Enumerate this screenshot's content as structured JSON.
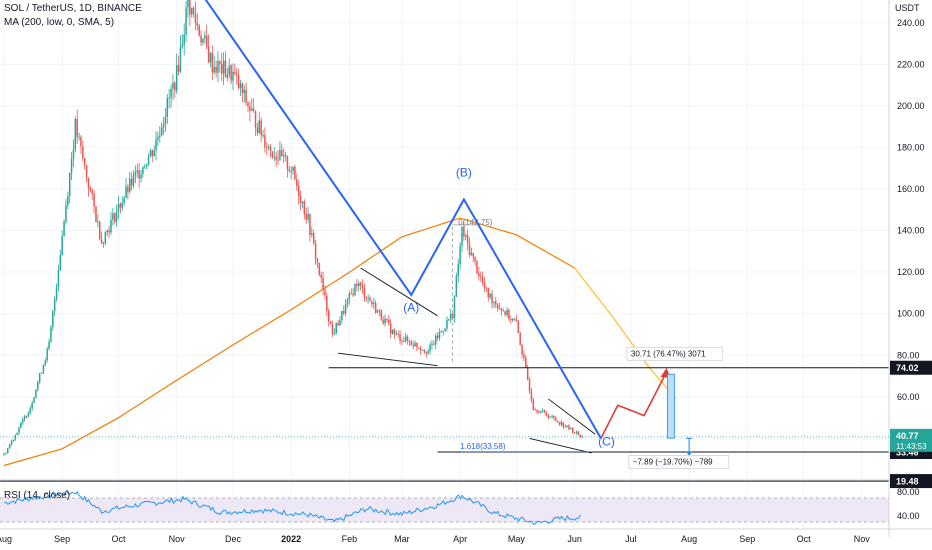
{
  "header": {
    "symbol_line": "SOL / TetherUS, 1D, BINANCE",
    "ma_line": "MA (200, low, 0, SMA, 5)",
    "rsi_line": "RSI (14, close)",
    "currency": "USDT"
  },
  "colors": {
    "up": "#26a69a",
    "down": "#ef5350",
    "ma": "#f57c00",
    "wave": "#2962ff",
    "projection": "#e53935",
    "rsi": "#2196f3",
    "rsi_band": "#ede7f6",
    "price_badge": "#26a69a"
  },
  "chart_data": [
    {
      "type": "candlestick",
      "title": "SOL / TetherUS, 1D, BINANCE",
      "x_ticks": [
        "Aug",
        "Sep",
        "Oct",
        "Nov",
        "Dec",
        "2022",
        "Feb",
        "Mar",
        "Apr",
        "May",
        "Jun",
        "Jul",
        "Aug",
        "Sep",
        "Oct",
        "Nov"
      ],
      "y_ticks": [
        "240.00",
        "220.00",
        "200.00",
        "180.00",
        "160.00",
        "140.00",
        "120.00",
        "100.00",
        "80.00",
        "60.00",
        "40.00"
      ],
      "ylim": [
        20,
        250
      ],
      "close_path": [
        {
          "x": "2021-08-01",
          "y": 32
        },
        {
          "x": "2021-08-15",
          "y": 55
        },
        {
          "x": "2021-08-25",
          "y": 85
        },
        {
          "x": "2021-09-08",
          "y": 190
        },
        {
          "x": "2021-09-22",
          "y": 135
        },
        {
          "x": "2021-10-06",
          "y": 160
        },
        {
          "x": "2021-10-20",
          "y": 180
        },
        {
          "x": "2021-11-01",
          "y": 215
        },
        {
          "x": "2021-11-07",
          "y": 250
        },
        {
          "x": "2021-11-20",
          "y": 220
        },
        {
          "x": "2021-12-01",
          "y": 215
        },
        {
          "x": "2021-12-20",
          "y": 180
        },
        {
          "x": "2022-01-01",
          "y": 170
        },
        {
          "x": "2022-01-10",
          "y": 145
        },
        {
          "x": "2022-01-23",
          "y": 90
        },
        {
          "x": "2022-02-05",
          "y": 115
        },
        {
          "x": "2022-02-25",
          "y": 90
        },
        {
          "x": "2022-03-15",
          "y": 82
        },
        {
          "x": "2022-03-28",
          "y": 100
        },
        {
          "x": "2022-04-02",
          "y": 140
        },
        {
          "x": "2022-04-15",
          "y": 110
        },
        {
          "x": "2022-05-01",
          "y": 95
        },
        {
          "x": "2022-05-10",
          "y": 55
        },
        {
          "x": "2022-05-20",
          "y": 50
        },
        {
          "x": "2022-06-05",
          "y": 40.77
        }
      ],
      "moving_average": {
        "name": "MA (200, low, 0, SMA, 5)",
        "points": [
          {
            "x": "2021-08-01",
            "y": 27
          },
          {
            "x": "2021-09-01",
            "y": 35
          },
          {
            "x": "2021-10-01",
            "y": 50
          },
          {
            "x": "2021-11-01",
            "y": 68
          },
          {
            "x": "2021-12-01",
            "y": 85
          },
          {
            "x": "2022-01-01",
            "y": 102
          },
          {
            "x": "2022-02-01",
            "y": 120
          },
          {
            "x": "2022-03-01",
            "y": 137
          },
          {
            "x": "2022-04-01",
            "y": 146
          },
          {
            "x": "2022-05-01",
            "y": 138
          },
          {
            "x": "2022-06-01",
            "y": 122
          },
          {
            "x": "2022-06-20",
            "y": 100
          },
          {
            "x": "2022-07-10",
            "y": 75
          },
          {
            "x": "2022-07-25",
            "y": 59
          }
        ]
      },
      "wave_lines": [
        {
          "x": "2021-11-15",
          "y": 253
        },
        {
          "x": "2022-03-06",
          "y": 109
        },
        {
          "x": "2022-04-03",
          "y": 155
        },
        {
          "x": "2022-06-15",
          "y": 40
        }
      ],
      "wave_labels": [
        {
          "text": "(A)",
          "x": "2022-03-06",
          "y": 101
        },
        {
          "text": "(B)",
          "x": "2022-04-03",
          "y": 166
        },
        {
          "text": "(C)",
          "x": "2022-06-18",
          "y": 36.5
        }
      ],
      "projection": [
        {
          "x": "2022-06-15",
          "y": 40
        },
        {
          "x": "2022-06-24",
          "y": 56
        },
        {
          "x": "2022-07-08",
          "y": 51
        },
        {
          "x": "2022-07-20",
          "y": 72
        }
      ],
      "horizontal_levels": [
        {
          "value": 74.02,
          "label": "74.02"
        },
        {
          "value": 33.46,
          "label": "33.46"
        },
        {
          "value": 19.48,
          "label": "19.48"
        }
      ],
      "current_price": {
        "label": "40.77",
        "countdown": "11:43:53"
      },
      "annotations": [
        {
          "text": "0(142.75)",
          "x": "2022-03-31",
          "y": 142.75
        },
        {
          "text": "1.618(33.58)",
          "x": "2022-04-01",
          "y": 33.58
        },
        {
          "text": "30.71 (76.47%) 3071",
          "x": "2022-07-01",
          "y": 79.5
        },
        {
          "text": "−7.89 (−19.70%) −789",
          "x": "2022-07-02",
          "y": 27.5
        }
      ],
      "measure_boxes": [
        {
          "from": 40.16,
          "to": 70.87,
          "x": "2022-07-22"
        },
        {
          "from": 40.06,
          "to": 32.17,
          "x": "2022-08-01"
        }
      ]
    },
    {
      "type": "line",
      "title": "RSI (14, close)",
      "y_ticks": [
        "80.00",
        "40.00"
      ],
      "ylim": [
        20,
        100
      ],
      "band": [
        30,
        70
      ],
      "points": [
        {
          "x": "2021-08-01",
          "y": 62
        },
        {
          "x": "2021-08-20",
          "y": 72
        },
        {
          "x": "2021-09-08",
          "y": 80
        },
        {
          "x": "2021-09-22",
          "y": 48
        },
        {
          "x": "2021-10-10",
          "y": 58
        },
        {
          "x": "2021-11-05",
          "y": 68
        },
        {
          "x": "2021-11-25",
          "y": 46
        },
        {
          "x": "2021-12-15",
          "y": 50
        },
        {
          "x": "2022-01-10",
          "y": 42
        },
        {
          "x": "2022-01-24",
          "y": 30
        },
        {
          "x": "2022-02-10",
          "y": 52
        },
        {
          "x": "2022-03-01",
          "y": 43
        },
        {
          "x": "2022-03-20",
          "y": 58
        },
        {
          "x": "2022-04-02",
          "y": 74
        },
        {
          "x": "2022-04-20",
          "y": 44
        },
        {
          "x": "2022-05-12",
          "y": 28
        },
        {
          "x": "2022-05-25",
          "y": 36
        },
        {
          "x": "2022-06-05",
          "y": 38
        }
      ]
    }
  ]
}
